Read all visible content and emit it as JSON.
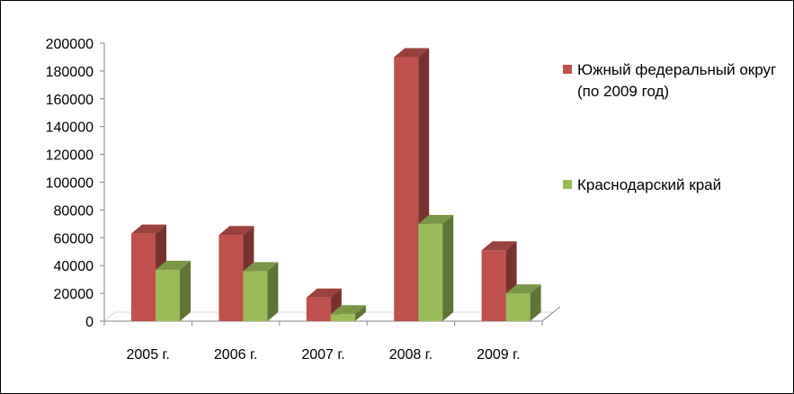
{
  "chart_data": {
    "type": "bar",
    "categories": [
      "2005 г.",
      "2006 г.",
      "2007 г.",
      "2008 г.",
      "2009 г."
    ],
    "series": [
      {
        "name": "Южный федеральный округ (по 2009 год)",
        "values": [
          63000,
          62000,
          17000,
          190000,
          51000
        ],
        "color": "#C0504D"
      },
      {
        "name": "Краснодарский край",
        "values": [
          37000,
          36000,
          5000,
          70000,
          20000
        ],
        "color": "#9BBB59"
      }
    ],
    "ylim": [
      0,
      200000
    ],
    "yticks": [
      "0",
      "20000",
      "40000",
      "60000",
      "80000",
      "100000",
      "120000",
      "140000",
      "160000",
      "180000",
      "200000"
    ],
    "title": "",
    "xlabel": "",
    "ylabel": "",
    "grid": false,
    "legend": "right",
    "style": "3d-clustered-column"
  }
}
